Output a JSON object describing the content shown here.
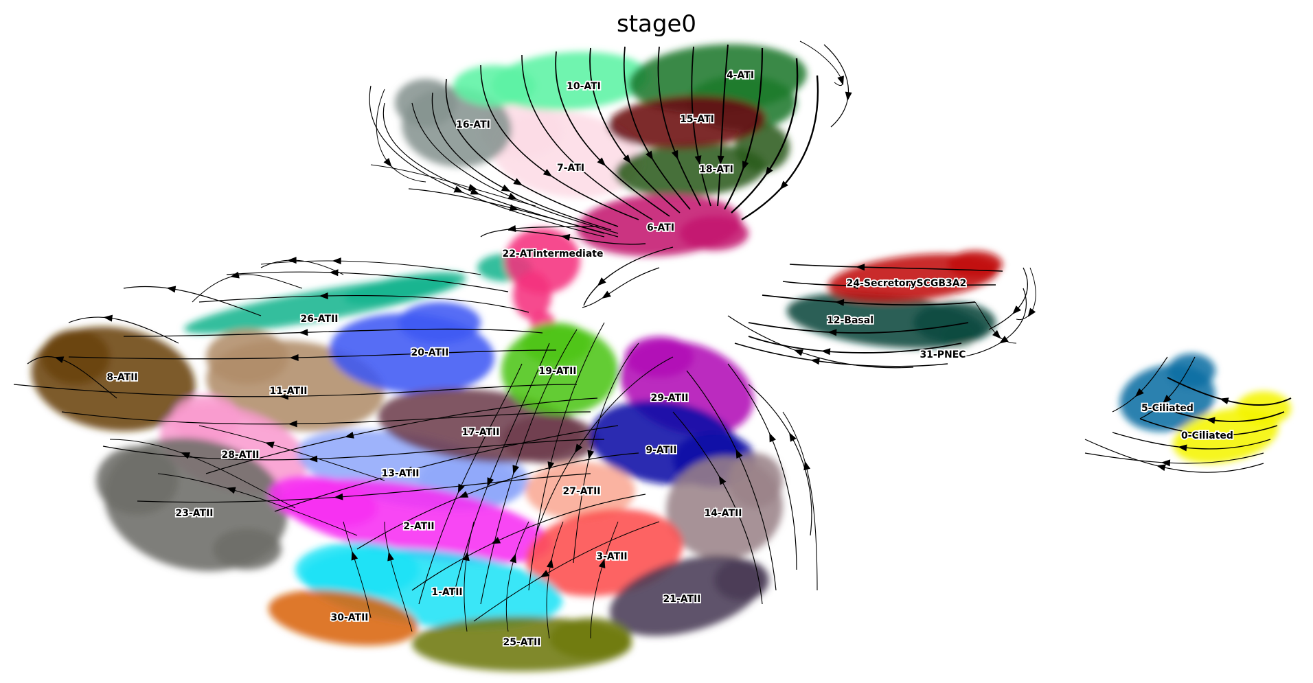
{
  "chart_data": {
    "type": "scatter",
    "title": "stage0",
    "xlabel": "",
    "ylabel": "",
    "axes_visible": false,
    "grid": false,
    "legend": "on data",
    "overlay": "velocity streamlines (arrows)",
    "clusters": [
      {
        "name": "0-Ciliated",
        "color": "#f5f500"
      },
      {
        "name": "1-ATII",
        "color": "#1ce3f6"
      },
      {
        "name": "2-ATII",
        "color": "#f72ff2"
      },
      {
        "name": "3-ATII",
        "color": "#fd4f4f"
      },
      {
        "name": "4-ATI",
        "color": "#1c7a2c"
      },
      {
        "name": "5-Ciliated",
        "color": "#086fa4"
      },
      {
        "name": "6-ATI",
        "color": "#c4176f"
      },
      {
        "name": "7-ATI",
        "color": "#fddce6"
      },
      {
        "name": "8-ATII",
        "color": "#6b430c"
      },
      {
        "name": "9-ATII",
        "color": "#0a08a6"
      },
      {
        "name": "10-ATI",
        "color": "#5cf2a4"
      },
      {
        "name": "11-ATII",
        "color": "#b08d6a"
      },
      {
        "name": "12-Basal",
        "color": "#0b4a40"
      },
      {
        "name": "13-ATII",
        "color": "#91a9fb"
      },
      {
        "name": "14-ATII",
        "color": "#9b8389"
      },
      {
        "name": "15-ATI",
        "color": "#6b0a13"
      },
      {
        "name": "16-ATI",
        "color": "#869491"
      },
      {
        "name": "17-ATII",
        "color": "#6e3f4e"
      },
      {
        "name": "18-ATI",
        "color": "#2c5c1c"
      },
      {
        "name": "19-ATII",
        "color": "#4ec516"
      },
      {
        "name": "20-ATII",
        "color": "#3d59f4"
      },
      {
        "name": "21-ATII",
        "color": "#4a3b55"
      },
      {
        "name": "22-ATintermediate",
        "color": "#f5327e"
      },
      {
        "name": "23-ATII",
        "color": "#6d6d69"
      },
      {
        "name": "24-SecretorySCGB3A2",
        "color": "#c10c0c"
      },
      {
        "name": "25-ATII",
        "color": "#6e7a0d"
      },
      {
        "name": "26-ATII",
        "color": "#16b590"
      },
      {
        "name": "27-ATII",
        "color": "#f9a994"
      },
      {
        "name": "28-ATII",
        "color": "#f99bcf"
      },
      {
        "name": "29-ATII",
        "color": "#b208b6"
      },
      {
        "name": "30-ATII",
        "color": "#d9650a"
      },
      {
        "name": "31-PNEC",
        "color": "#a6c4b5"
      }
    ]
  }
}
